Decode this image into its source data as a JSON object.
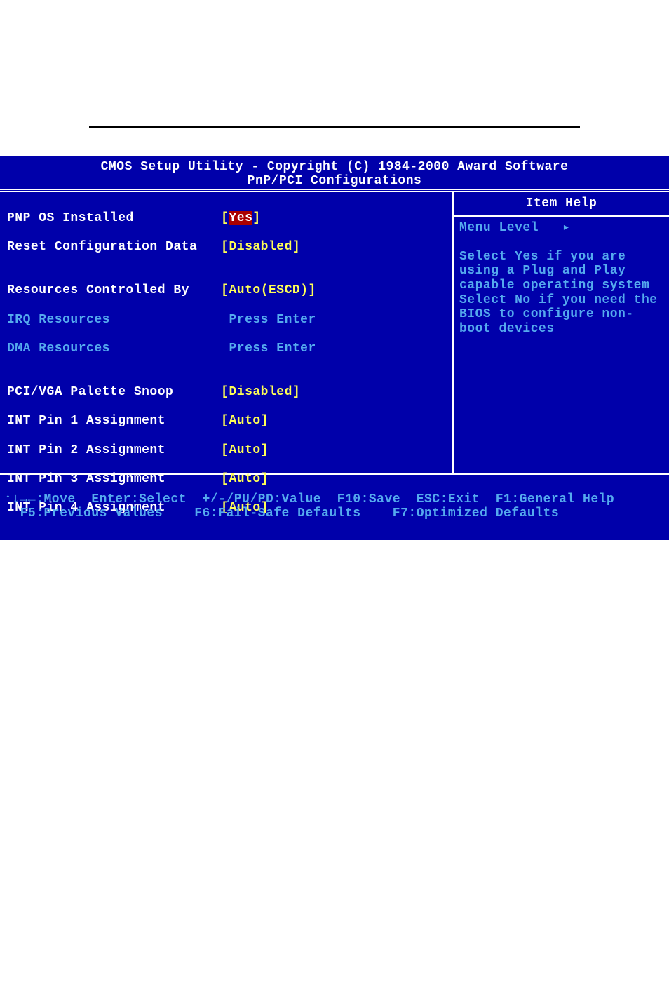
{
  "colors": {
    "bios_bg": "#0000aa",
    "text_white": "#ffffff",
    "text_yellow": "#ffff55",
    "text_cyan": "#55aaee",
    "selected_bg": "#aa0000"
  },
  "header": {
    "title": "CMOS Setup Utility - Copyright (C) 1984-2000 Award Software",
    "subtitle": "PnP/PCI Configurations"
  },
  "items": {
    "pnp_os_label": "PNP OS Installed",
    "pnp_os_value": "Yes",
    "reset_cfg_label": "Reset Configuration Data",
    "reset_cfg_value": "Disabled",
    "res_ctrl_label": "Resources Controlled By",
    "res_ctrl_value": "Auto(ESCD)",
    "irq_res_label": "IRQ Resources",
    "irq_res_value": "Press Enter",
    "dma_res_label": "DMA Resources",
    "dma_res_value": "Press Enter",
    "pci_vga_label": "PCI/VGA Palette Snoop",
    "pci_vga_value": "Disabled",
    "int1_label": "INT Pin 1 Assignment",
    "int1_value": "Auto",
    "int2_label": "INT Pin 2 Assignment",
    "int2_value": "Auto",
    "int3_label": "INT Pin 3 Assignment",
    "int3_value": "Auto",
    "int4_label": "INT Pin 4 Assignment",
    "int4_value": "Auto"
  },
  "help": {
    "title": "Item Help",
    "menu_level_label": "Menu Level",
    "menu_level_arrow": "▸",
    "text": "Select Yes if you are using a Plug and Play capable operating system Select No if you need the BIOS to configure non-boot devices"
  },
  "footer": {
    "line1": "↑↓→←:Move  Enter:Select  +/-/PU/PD:Value  F10:Save  ESC:Exit  F1:General Help",
    "line2": "  F5:Previous Values    F6:Fail-Safe Defaults    F7:Optimized Defaults"
  }
}
